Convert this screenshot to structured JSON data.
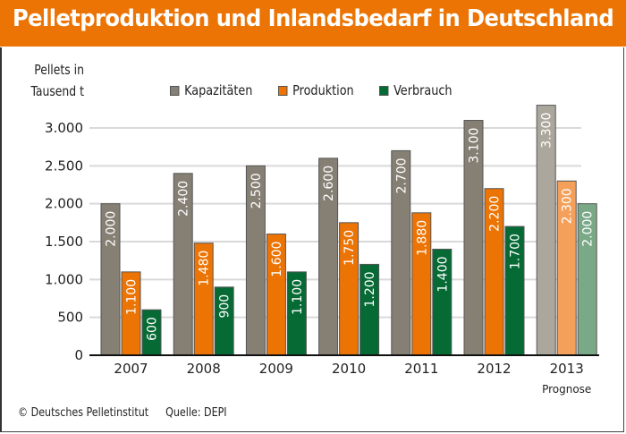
{
  "header": {
    "title": "Pelletproduktion und Inlandsbedarf in Deutschland"
  },
  "footer": {
    "copyright": "© Deutsches Pelletinstitut",
    "source": "Quelle: DEPI"
  },
  "colors": {
    "title_bar": "#ec7404",
    "Kapazitäten": "#857f74",
    "Produktion": "#ec7404",
    "Verbrauch": "#066a35",
    "Kapazitäten_forecast": "#aca79d",
    "Produktion_forecast": "#f4a05a",
    "Verbrauch_forecast": "#7aa987"
  },
  "chart_data": {
    "type": "bar",
    "title": "Pelletproduktion und Inlandsbedarf in Deutschland",
    "ylabel": "Pellets in Tausend t",
    "ylabel_lines": [
      "Pellets in",
      "Tausend t"
    ],
    "xlabel": "",
    "ylim": [
      0,
      3000
    ],
    "yticks": [
      0,
      500,
      1000,
      1500,
      2000,
      2500,
      3000
    ],
    "ytick_labels": [
      "0",
      "500",
      "1.000",
      "1.500",
      "2.000",
      "2.500",
      "3.000"
    ],
    "grid": true,
    "legend": "top-center",
    "categories": [
      "2007",
      "2008",
      "2009",
      "2010",
      "2011",
      "2012",
      "2013"
    ],
    "category_notes": {
      "2013": "Prognose"
    },
    "forecast_categories": [
      "2013"
    ],
    "series": [
      {
        "name": "Kapazitäten",
        "values": [
          2000,
          2400,
          2500,
          2600,
          2700,
          3100,
          3300
        ],
        "labels": [
          "2.000",
          "2.400",
          "2.500",
          "2.600",
          "2.700",
          "3.100",
          "3.300"
        ]
      },
      {
        "name": "Produktion",
        "values": [
          1100,
          1480,
          1600,
          1750,
          1880,
          2200,
          2300
        ],
        "labels": [
          "1.100",
          "1.480",
          "1.600",
          "1.750",
          "1.880",
          "2.200",
          "2.300"
        ]
      },
      {
        "name": "Verbrauch",
        "values": [
          600,
          900,
          1100,
          1200,
          1400,
          1700,
          2000
        ],
        "labels": [
          "600",
          "900",
          "1.100",
          "1.200",
          "1.400",
          "1.700",
          "2.000"
        ]
      }
    ]
  }
}
